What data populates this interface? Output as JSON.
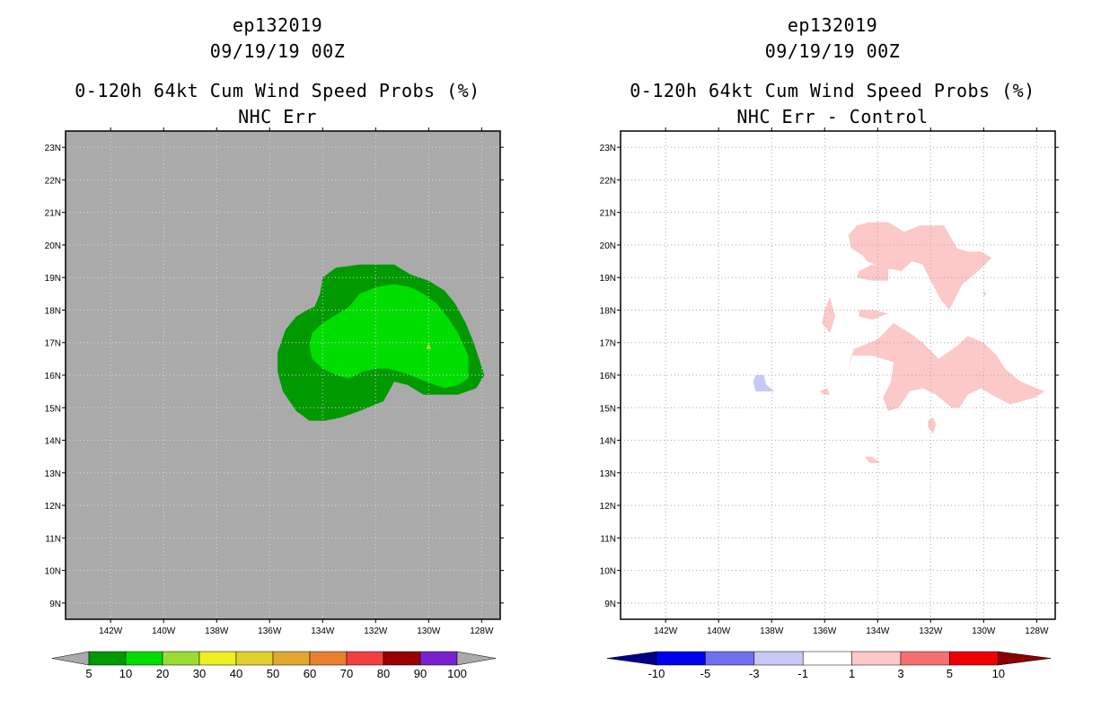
{
  "panels": [
    {
      "title_lines": [
        "ep132019",
        "09/19/19 00Z",
        "0-120h 64kt Cum Wind Speed Probs (%)",
        "NHC Err"
      ]
    },
    {
      "title_lines": [
        "ep132019",
        "09/19/19 00Z",
        "0-120h 64kt Cum Wind Speed Probs (%)",
        "NHC Err - Control"
      ]
    }
  ],
  "chart_data": [
    {
      "type": "heatmap",
      "background_color": "#aaaaaa",
      "grid": true,
      "xlim": [
        -143.7,
        -127.3
      ],
      "ylim": [
        8.5,
        23.5
      ],
      "x_ticks": [
        "142W",
        "140W",
        "138W",
        "136W",
        "134W",
        "132W",
        "130W",
        "128W"
      ],
      "y_ticks": [
        "23N",
        "22N",
        "21N",
        "20N",
        "19N",
        "18N",
        "17N",
        "16N",
        "15N",
        "14N",
        "13N",
        "12N",
        "11N",
        "10N",
        "9N"
      ],
      "colorbar": {
        "labels": [
          "5",
          "10",
          "20",
          "30",
          "40",
          "50",
          "60",
          "70",
          "80",
          "90",
          "100"
        ],
        "colors": [
          "#009900",
          "#00dd00",
          "#99dd33",
          "#eeee22",
          "#e0d030",
          "#e0a830",
          "#e88030",
          "#f04040",
          "#990000",
          "#7722cc"
        ],
        "under_color": "#aaaaaa",
        "over_color": "#aaaaaa"
      },
      "contours": [
        {
          "level": "5-10",
          "color": "#009900",
          "lon": [
            -134.0,
            -133.5,
            -132.6,
            -131.3,
            -130.7,
            -130.0,
            -129.4,
            -129.0,
            -128.6,
            -128.3,
            -128.1,
            -127.9,
            -128.2,
            -128.9,
            -130.2,
            -130.8,
            -131.3,
            -131.7,
            -132.0,
            -132.6,
            -133.3,
            -133.9,
            -134.5,
            -135.0,
            -135.5,
            -135.7,
            -135.7,
            -135.4,
            -135.0,
            -134.6,
            -134.3,
            -134.1
          ],
          "lat": [
            19.0,
            19.3,
            19.4,
            19.4,
            19.1,
            18.9,
            18.6,
            18.2,
            17.6,
            17.0,
            16.5,
            16.0,
            15.6,
            15.4,
            15.4,
            15.7,
            15.8,
            15.2,
            15.1,
            14.9,
            14.7,
            14.6,
            14.6,
            14.9,
            15.5,
            16.1,
            16.7,
            17.4,
            17.8,
            18.0,
            18.1,
            18.5
          ]
        },
        {
          "level": "10-20",
          "color": "#00dd00",
          "lon": [
            -133.0,
            -132.6,
            -132.0,
            -131.3,
            -130.7,
            -130.2,
            -129.7,
            -129.3,
            -128.9,
            -128.5,
            -128.5,
            -128.9,
            -129.4,
            -130.1,
            -130.7,
            -131.1,
            -131.5,
            -132.0,
            -132.5,
            -133.0,
            -133.5,
            -134.0,
            -134.4,
            -134.5,
            -134.4,
            -134.0,
            -133.6
          ],
          "lat": [
            18.1,
            18.5,
            18.7,
            18.8,
            18.7,
            18.5,
            18.2,
            17.8,
            17.3,
            16.6,
            15.9,
            15.7,
            15.6,
            15.8,
            16.0,
            16.1,
            16.2,
            16.2,
            16.1,
            15.9,
            16.0,
            16.2,
            16.5,
            16.9,
            17.3,
            17.6,
            17.8
          ]
        },
        {
          "level": "20-30",
          "color": "#99dd33",
          "lon": [
            -130.0,
            -129.9,
            -130.1
          ],
          "lat": [
            17.0,
            16.8,
            16.8
          ]
        }
      ]
    },
    {
      "type": "heatmap",
      "background_color": "#ffffff",
      "grid": true,
      "xlim": [
        -143.7,
        -127.3
      ],
      "ylim": [
        8.5,
        23.5
      ],
      "x_ticks": [
        "142W",
        "140W",
        "138W",
        "136W",
        "134W",
        "132W",
        "130W",
        "128W"
      ],
      "y_ticks": [
        "23N",
        "22N",
        "21N",
        "20N",
        "19N",
        "18N",
        "17N",
        "16N",
        "15N",
        "14N",
        "13N",
        "12N",
        "11N",
        "10N",
        "9N"
      ],
      "colorbar": {
        "labels": [
          "-10",
          "-5",
          "-3",
          "-1",
          "1",
          "3",
          "5",
          "10"
        ],
        "colors": [
          "#0000ee",
          "#7070ee",
          "#c8c8f4",
          "#ffffff",
          "#fcc8c8",
          "#f47070",
          "#ee0000"
        ],
        "under_color": "#000088",
        "over_color": "#880000"
      },
      "contours": [
        {
          "level": "1-3",
          "color": "#fcc8c8",
          "lon": [
            -135.1,
            -134.8,
            -134.3,
            -133.6,
            -133.0,
            -132.4,
            -131.5,
            -131.0,
            -130.6,
            -130.1,
            -129.7,
            -130.2,
            -130.8,
            -131.3,
            -131.6,
            -132.0,
            -132.3,
            -132.7,
            -133.1,
            -133.8,
            -134.4,
            -134.6,
            -135.0
          ],
          "lat": [
            20.3,
            20.6,
            20.7,
            20.7,
            20.4,
            20.6,
            20.6,
            19.9,
            19.8,
            19.8,
            19.6,
            19.2,
            18.8,
            18.0,
            18.3,
            18.9,
            19.4,
            19.5,
            19.2,
            19.3,
            19.5,
            19.7,
            19.9
          ]
        },
        {
          "level": "1-3",
          "color": "#fcc8c8",
          "lon": [
            -134.7,
            -134.2,
            -133.6,
            -133.6,
            -134.2,
            -134.8
          ],
          "lat": [
            19.2,
            19.4,
            19.3,
            18.9,
            18.9,
            19.0
          ]
        },
        {
          "level": "1-3",
          "color": "#fcc8c8",
          "lon": [
            -136.0,
            -135.8,
            -135.6,
            -135.8,
            -136.1
          ],
          "lat": [
            18.0,
            18.4,
            17.8,
            17.3,
            17.6
          ]
        },
        {
          "level": "1-3",
          "color": "#fcc8c8",
          "lon": [
            -134.7,
            -134.2,
            -133.6,
            -134.2,
            -134.7
          ],
          "lat": [
            18.0,
            18.0,
            17.9,
            17.7,
            17.8
          ]
        },
        {
          "level": "1-3",
          "color": "#fcc8c8",
          "lon": [
            -133.4,
            -132.8,
            -132.3,
            -131.7,
            -131.0,
            -130.6,
            -130.0,
            -129.5,
            -129.2,
            -128.6,
            -127.7,
            -128.1,
            -129.0,
            -129.7,
            -130.1,
            -130.6,
            -130.9,
            -131.2,
            -131.8,
            -132.3,
            -132.8,
            -133.2,
            -133.6,
            -133.8,
            -133.5,
            -133.4,
            -134.2,
            -135.0,
            -135.1,
            -134.9,
            -134.0
          ],
          "lat": [
            17.6,
            17.3,
            17.0,
            16.5,
            16.9,
            17.2,
            17.0,
            16.6,
            16.2,
            15.8,
            15.5,
            15.3,
            15.1,
            15.4,
            15.6,
            15.4,
            15.0,
            15.0,
            15.4,
            15.6,
            15.5,
            15.0,
            14.9,
            15.3,
            15.8,
            16.4,
            16.6,
            16.6,
            16.2,
            16.8,
            17.1
          ]
        },
        {
          "level": "1-3",
          "color": "#fcc8c8",
          "lon": [
            -136.2,
            -135.9,
            -135.8,
            -136.0
          ],
          "lat": [
            15.5,
            15.6,
            15.4,
            15.4
          ]
        },
        {
          "level": "1-3",
          "color": "#fcc8c8",
          "lon": [
            -132.1,
            -131.9,
            -131.8,
            -131.9,
            -132.1
          ],
          "lat": [
            14.6,
            14.7,
            14.5,
            14.2,
            14.4
          ]
        },
        {
          "level": "1-3",
          "color": "#fcc8c8",
          "lon": [
            -134.5,
            -134.2,
            -133.9,
            -134.3
          ],
          "lat": [
            13.5,
            13.5,
            13.3,
            13.3
          ]
        },
        {
          "level": "1-3",
          "color": "#fcc8c8",
          "lon": [
            -130.0,
            -129.9,
            -130.0
          ],
          "lat": [
            18.6,
            18.5,
            18.4
          ]
        },
        {
          "level": "-3--1",
          "color": "#c8c8f4",
          "lon": [
            -138.6,
            -138.3,
            -138.2,
            -137.9,
            -138.6,
            -138.7
          ],
          "lat": [
            16.0,
            16.0,
            15.7,
            15.5,
            15.5,
            15.8
          ]
        }
      ]
    }
  ]
}
